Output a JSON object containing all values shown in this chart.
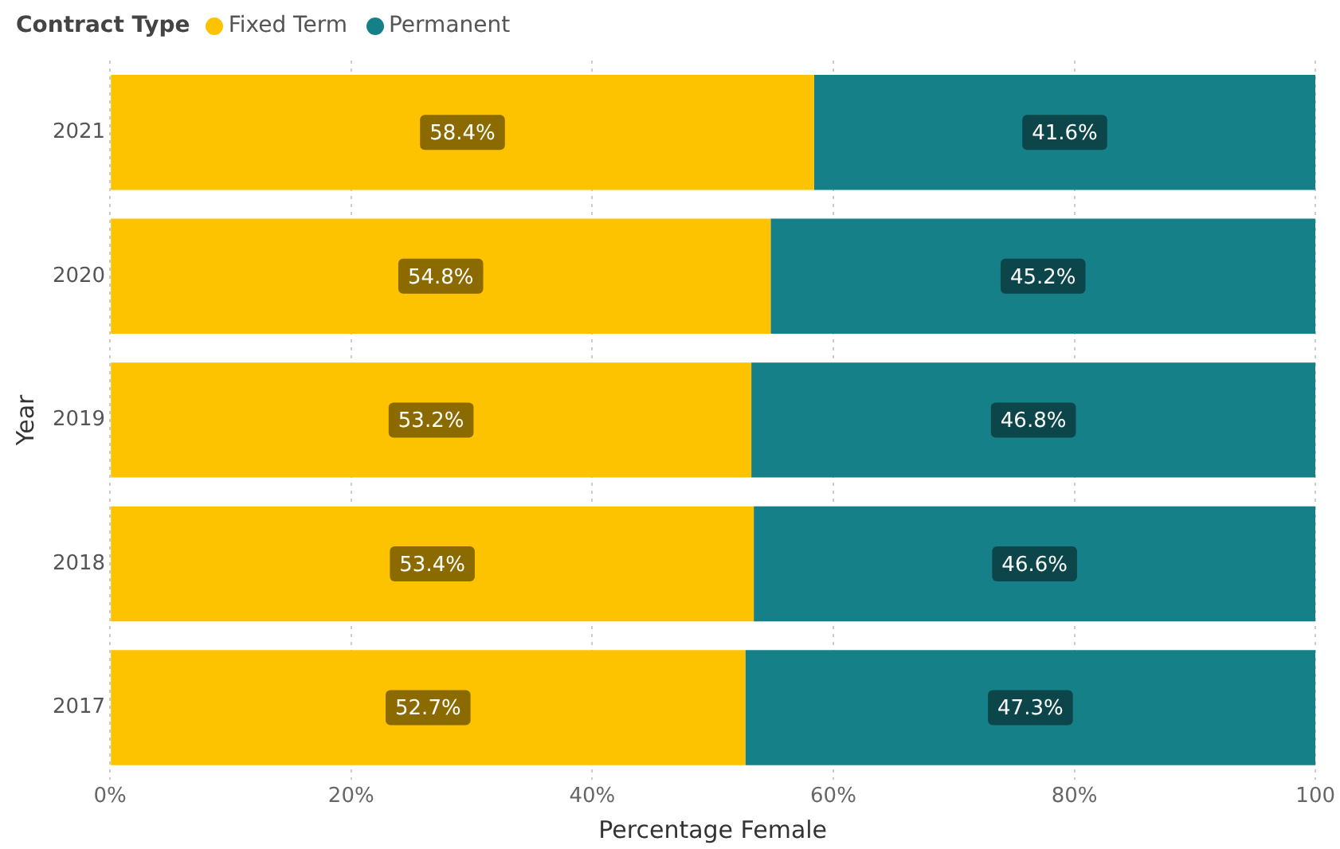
{
  "chart_data": {
    "type": "bar",
    "orientation": "horizontal",
    "stacked": true,
    "categories": [
      "2021",
      "2020",
      "2019",
      "2018",
      "2017"
    ],
    "series": [
      {
        "name": "Fixed Term",
        "color": "#fdc200",
        "values": [
          58.4,
          54.8,
          53.2,
          53.4,
          52.7
        ],
        "value_labels": [
          "58.4%",
          "54.8%",
          "53.2%",
          "53.4%",
          "52.7%"
        ]
      },
      {
        "name": "Permanent",
        "color": "#168089",
        "values": [
          41.6,
          45.2,
          46.8,
          46.6,
          47.3
        ],
        "value_labels": [
          "41.6%",
          "45.2%",
          "46.8%",
          "46.6%",
          "47.3%"
        ]
      }
    ],
    "xlim": [
      0,
      100
    ],
    "xticks": [
      {
        "value": 0,
        "label": "0%"
      },
      {
        "value": 20,
        "label": "20%"
      },
      {
        "value": 40,
        "label": "40%"
      },
      {
        "value": 60,
        "label": "60%"
      },
      {
        "value": 80,
        "label": "80%"
      },
      {
        "value": 100,
        "label": "100"
      }
    ],
    "xlabel": "Percentage Female",
    "ylabel": "Year",
    "legend_title": "Contract Type",
    "legend": "top left",
    "grid": "x"
  }
}
